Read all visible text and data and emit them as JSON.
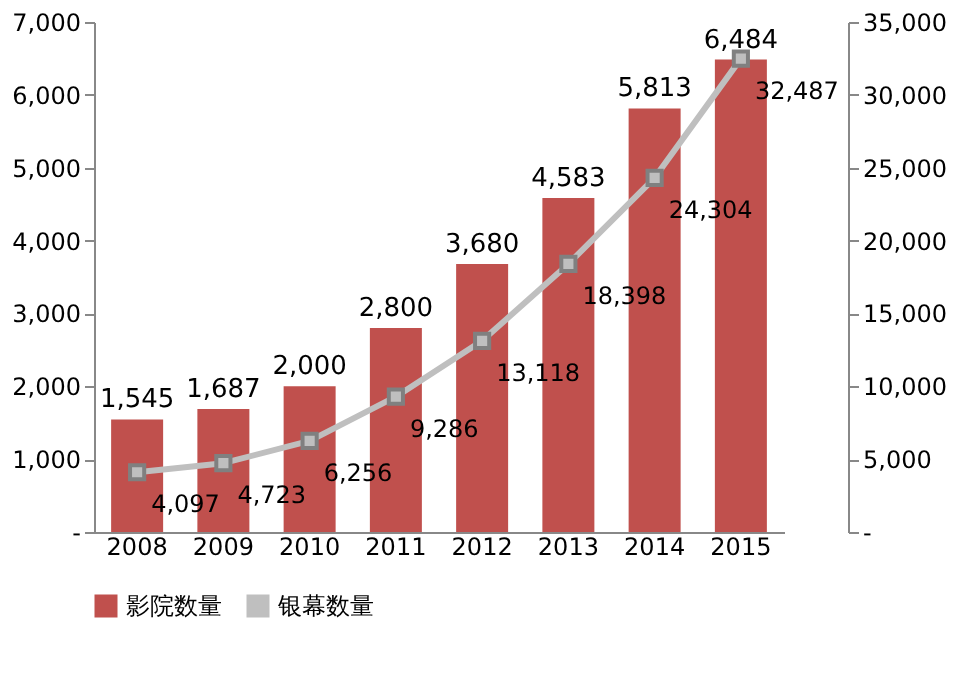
{
  "chart_data": {
    "type": "bar",
    "categories": [
      "2008",
      "2009",
      "2010",
      "2011",
      "2012",
      "2013",
      "2014",
      "2015"
    ],
    "series": [
      {
        "name": "影院数量",
        "color": "#c0504d",
        "values": [
          1545,
          1687,
          2000,
          2800,
          3680,
          4583,
          5813,
          6484
        ],
        "value_labels": [
          "1,545",
          "1,687",
          "2,000",
          "2,800",
          "3,680",
          "4,583",
          "5,813",
          "6,484"
        ]
      },
      {
        "name": "银幕数量",
        "type": "line",
        "axis": "y2",
        "color": "#bfbfbf",
        "marker": "square",
        "values": [
          4097,
          4723,
          6256,
          9286,
          13118,
          18398,
          24304,
          32487
        ],
        "value_labels": [
          "4,097",
          "4,723",
          "6,256",
          "9,286",
          "13,118",
          "18,398",
          "24,304",
          "32,487"
        ]
      }
    ],
    "ylim": [
      0,
      7000
    ],
    "yticks": [
      {
        "value": 0,
        "label": "-"
      },
      {
        "value": 1000,
        "label": "1,000"
      },
      {
        "value": 2000,
        "label": "2,000"
      },
      {
        "value": 3000,
        "label": "3,000"
      },
      {
        "value": 4000,
        "label": "4,000"
      },
      {
        "value": 5000,
        "label": "5,000"
      },
      {
        "value": 6000,
        "label": "6,000"
      },
      {
        "value": 7000,
        "label": "7,000"
      }
    ],
    "y2lim": [
      0,
      35000
    ],
    "y2ticks": [
      {
        "value": 0,
        "label": "-"
      },
      {
        "value": 5000,
        "label": "5,000"
      },
      {
        "value": 10000,
        "label": "10,000"
      },
      {
        "value": 15000,
        "label": "15,000"
      },
      {
        "value": 20000,
        "label": "20,000"
      },
      {
        "value": 25000,
        "label": "25,000"
      },
      {
        "value": 30000,
        "label": "30,000"
      },
      {
        "value": 35000,
        "label": "35,000"
      }
    ],
    "grid": false,
    "legend": "bottom"
  }
}
